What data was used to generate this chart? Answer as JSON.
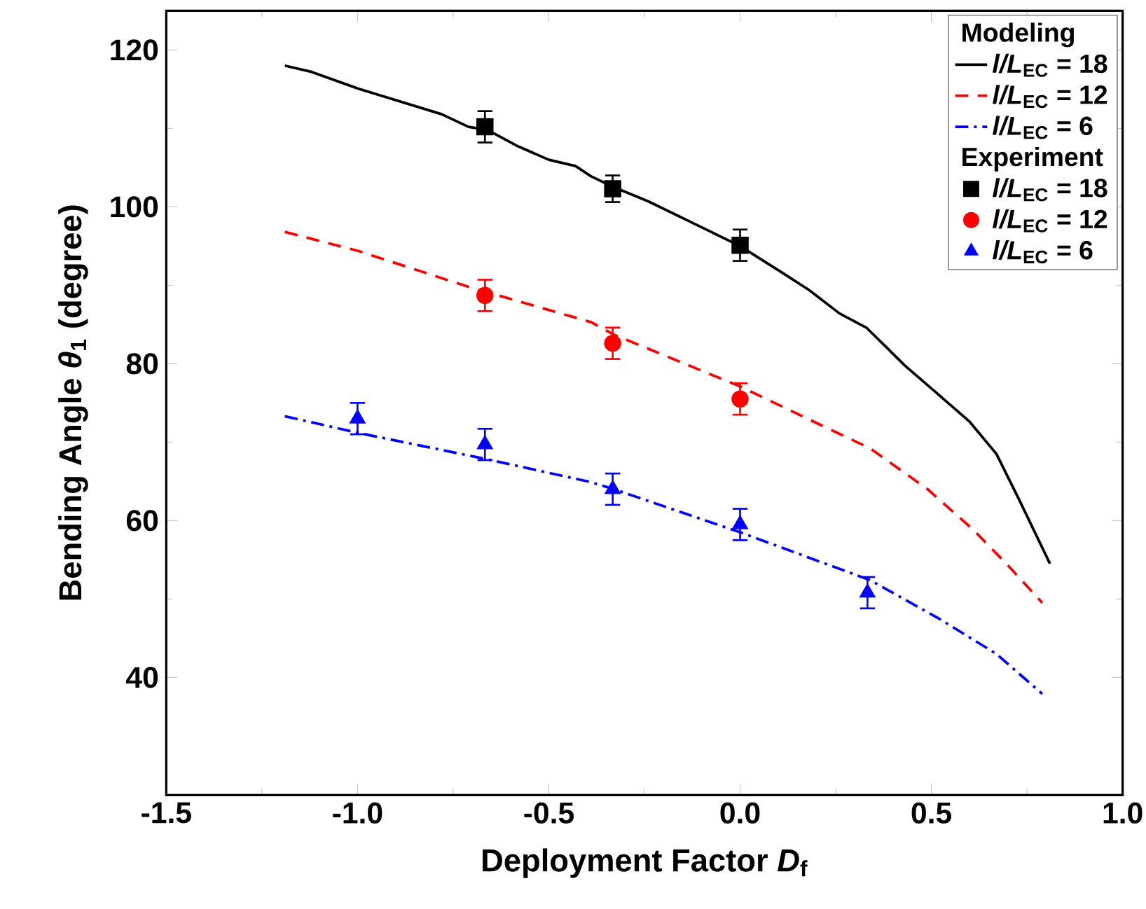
{
  "chart_data": {
    "type": "line",
    "xlabel": "Deployment Factor *D*$_{f}$",
    "ylabel": "Bending Angle *θ*$_{1}$ (degree)",
    "legend_title": "Modeling",
    "annotations": [
      "Experiment"
    ],
    "xlim": [
      -1.5,
      1.0
    ],
    "ylim": [
      25,
      125
    ],
    "xticks": [
      -1.5,
      {
        "value": -1.0,
        "label": "-1.0"
      },
      -0.5,
      {
        "value": 0,
        "label": "0.0"
      },
      0.5,
      {
        "value": 1.0,
        "label": "1.0"
      }
    ],
    "yticks": [
      40,
      60,
      80,
      100,
      120
    ],
    "legend": "top right",
    "grid": false,
    "series": [
      {
        "name": "*l/L*$_{EC}$ = 18",
        "color": "#000000",
        "line_style": "solid",
        "marker": "none",
        "x": [
          -1.19,
          -1.12,
          -1.0,
          -0.78,
          -0.71,
          -0.66,
          -0.58,
          -0.5,
          -0.43,
          -0.39,
          -0.33,
          -0.24,
          0.0,
          0.11,
          0.18,
          0.26,
          0.33,
          0.43,
          0.52,
          0.6,
          0.67,
          0.73,
          0.81
        ],
        "values": [
          118.0,
          117.2,
          115.1,
          111.8,
          110.2,
          109.8,
          107.7,
          106.0,
          105.2,
          103.9,
          102.5,
          100.7,
          95.0,
          91.6,
          89.4,
          86.4,
          84.6,
          79.8,
          76.0,
          72.6,
          68.5,
          62.6,
          54.5
        ]
      },
      {
        "name": "*l/L*$_{EC}$ = 12",
        "color": "#ff0000",
        "line_style": "dashed",
        "marker": "none",
        "x": [
          -1.19,
          -1.0,
          -0.71,
          -0.39,
          -0.33,
          0.0,
          0.18,
          0.34,
          0.49,
          0.61,
          0.7,
          0.79
        ],
        "values": [
          96.8,
          94.4,
          89.8,
          85.3,
          83.7,
          77.1,
          72.9,
          69.2,
          64.0,
          58.8,
          54.3,
          49.5
        ]
      },
      {
        "name": "*l/L*$_{EC}$ = 6",
        "color": "#0000ff",
        "line_style": "dashdot",
        "marker": "none",
        "x": [
          -1.19,
          -1.0,
          -0.66,
          -0.39,
          -0.33,
          0.0,
          0.34,
          0.52,
          0.67,
          0.79
        ],
        "values": [
          73.3,
          71.2,
          67.8,
          64.9,
          64.0,
          58.5,
          52.4,
          47.5,
          43.0,
          37.9
        ]
      },
      {
        "name": "*l/L*$_{EC}$ = 18",
        "type": "scatter",
        "color": "#000000",
        "marker": "square",
        "x": [
          -0.667,
          -0.333,
          0.0
        ],
        "values": [
          110.2,
          102.3,
          95.1
        ],
        "errors": [
          2,
          1.7,
          2
        ]
      },
      {
        "name": "*l/L*$_{EC}$ = 12",
        "type": "scatter",
        "color": "#ff0000",
        "marker": "circle",
        "x": [
          -0.667,
          -0.333,
          0.0
        ],
        "values": [
          88.7,
          82.6,
          75.5
        ],
        "errors": [
          2,
          2,
          2
        ]
      },
      {
        "name": "*l/L*$_{EC}$ = 6",
        "type": "scatter",
        "color": "#0000ff",
        "marker": "triangle",
        "x": [
          -1.0,
          -0.667,
          -0.333,
          0.0,
          0.333
        ],
        "values": [
          73.0,
          69.7,
          64.0,
          59.5,
          50.8
        ],
        "errors": [
          2,
          2,
          2,
          2,
          2
        ]
      }
    ]
  }
}
